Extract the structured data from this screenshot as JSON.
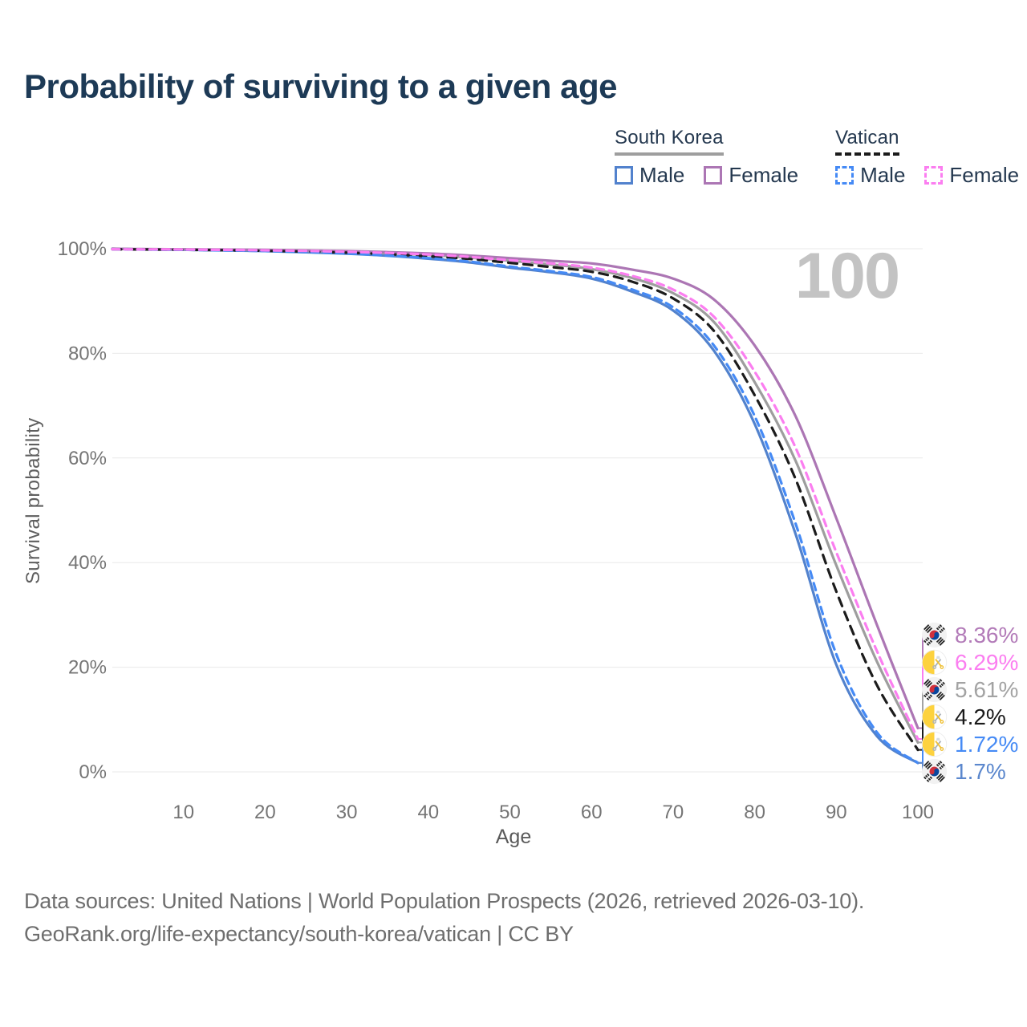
{
  "title": "Probability of surviving to a given age",
  "watermark": "100",
  "legend": {
    "groups": [
      {
        "label": "South Korea",
        "underline_style": "solid",
        "underline_color": "#9e9e9e",
        "items": [
          {
            "label": "Male",
            "color": "#5282cd",
            "dash": false
          },
          {
            "label": "Female",
            "color": "#ac76b4",
            "dash": false
          }
        ]
      },
      {
        "label": "Vatican",
        "underline_style": "dashed",
        "underline_color": "#1b1b1b",
        "items": [
          {
            "label": "Male",
            "color": "#458af5",
            "dash": true
          },
          {
            "label": "Female",
            "color": "#fb7ef0",
            "dash": true
          }
        ]
      }
    ]
  },
  "chart_data": {
    "type": "line",
    "title": "Probability of surviving to a given age",
    "xlabel": "Age",
    "ylabel": "Survival probability",
    "xlim": [
      0,
      100
    ],
    "ylim": [
      0,
      100
    ],
    "grid": "horizontal",
    "legend_position": "top-right",
    "x_ticks": [
      10,
      20,
      30,
      40,
      50,
      60,
      70,
      80,
      90,
      100
    ],
    "y_ticks": [
      "0%",
      "20%",
      "40%",
      "60%",
      "80%",
      "100%"
    ],
    "x": [
      0,
      5,
      10,
      15,
      20,
      25,
      30,
      35,
      40,
      45,
      50,
      55,
      60,
      65,
      70,
      75,
      80,
      85,
      90,
      95,
      100
    ],
    "series": [
      {
        "id": "kr-male",
        "name": "South Korea Male",
        "color": "#5282cd",
        "dash": null,
        "values": [
          100,
          99.88,
          99.8,
          99.7,
          99.55,
          99.32,
          99.05,
          98.65,
          98.1,
          97.4,
          96.4,
          95.5,
          94.3,
          91.8,
          88.2,
          80.5,
          66.5,
          45.5,
          20.5,
          6.8,
          1.7
        ]
      },
      {
        "id": "kr-total",
        "name": "South Korea",
        "color": "#9e9e9e",
        "dash": null,
        "values": [
          99.95,
          99.9,
          99.86,
          99.8,
          99.72,
          99.6,
          99.42,
          99.15,
          98.8,
          98.3,
          97.7,
          97.0,
          96.1,
          94.4,
          91.5,
          86.0,
          74.5,
          59.5,
          39.5,
          21.0,
          5.61
        ]
      },
      {
        "id": "kr-female",
        "name": "South Korea Female",
        "color": "#ac76b4",
        "dash": null,
        "values": [
          100,
          99.94,
          99.9,
          99.85,
          99.78,
          99.68,
          99.55,
          99.35,
          99.1,
          98.7,
          98.2,
          97.7,
          97.2,
          96.0,
          94.3,
          90.3,
          81.5,
          68.0,
          48.5,
          28.0,
          8.36
        ]
      },
      {
        "id": "va-total",
        "name": "Vatican",
        "color": "#1c1c1c",
        "dash": "11 8",
        "values": [
          99.9,
          99.86,
          99.8,
          99.72,
          99.6,
          99.45,
          99.25,
          98.95,
          98.55,
          98.05,
          97.3,
          96.5,
          95.6,
          93.7,
          90.5,
          84.3,
          72.0,
          56.0,
          34.5,
          16.5,
          4.2
        ]
      },
      {
        "id": "va-male",
        "name": "Vatican Male",
        "color": "#458af5",
        "dash": "9 6.5",
        "values": [
          99.9,
          99.85,
          99.78,
          99.68,
          99.55,
          99.35,
          99.1,
          98.7,
          98.2,
          97.55,
          96.6,
          95.7,
          94.6,
          92.2,
          88.8,
          81.5,
          68.0,
          47.5,
          22.5,
          7.5,
          1.72
        ]
      },
      {
        "id": "va-female",
        "name": "Vatican Female",
        "color": "#fb7ef0",
        "dash": "9 6.5",
        "values": [
          99.9,
          99.88,
          99.84,
          99.78,
          99.7,
          99.58,
          99.42,
          99.2,
          98.9,
          98.45,
          97.8,
          97.2,
          96.4,
          94.8,
          92.2,
          87.0,
          76.5,
          62.0,
          42.0,
          23.0,
          6.29
        ]
      }
    ]
  },
  "end_labels": [
    {
      "series": "kr-female",
      "value": "8.36%",
      "color": "#b27ab8",
      "flag": "kr"
    },
    {
      "series": "va-female",
      "value": "6.29%",
      "color": "#fb7ef0",
      "flag": "va"
    },
    {
      "series": "kr-total",
      "value": "5.61%",
      "color": "#a3a3a3",
      "flag": "kr"
    },
    {
      "series": "va-total",
      "value": "4.2%",
      "color": "#1a1a1a",
      "flag": "va"
    },
    {
      "series": "va-male",
      "value": "1.72%",
      "color": "#458af5",
      "flag": "va"
    },
    {
      "series": "kr-male",
      "value": "1.7%",
      "color": "#5b87cd",
      "flag": "kr"
    }
  ],
  "footer": {
    "line1": "Data sources: United Nations | World Population Prospects (2026, retrieved 2026-03-10).",
    "line2": "GeoRank.org/life-expectancy/south-korea/vatican | CC BY"
  }
}
